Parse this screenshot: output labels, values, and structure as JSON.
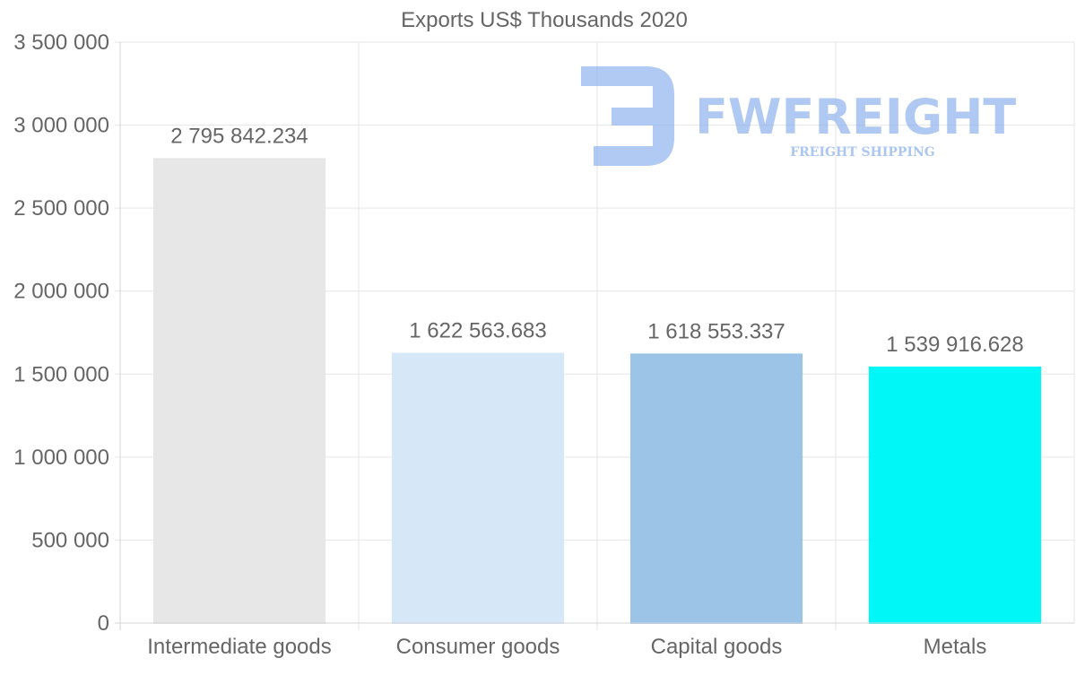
{
  "chart_data": {
    "type": "bar",
    "title": "Exports US$ Thousands 2020",
    "categories": [
      "Intermediate goods",
      "Consumer goods",
      "Capital goods",
      "Metals"
    ],
    "values": [
      2795842.234,
      1622563.683,
      1618553.337,
      1539916.628
    ],
    "value_labels": [
      "2 795 842.234",
      "1 622 563.683",
      "1 618 553.337",
      "1 539 916.628"
    ],
    "colors": [
      "#e7e7e7",
      "#d6e7f8",
      "#9bc4e6",
      "#00f7f7"
    ],
    "ylim": [
      0,
      3500000
    ],
    "yticks": [
      0,
      500000,
      1000000,
      1500000,
      2000000,
      2500000,
      3000000,
      3500000
    ],
    "ytick_labels": [
      "0",
      "500 000",
      "1 000 000",
      "1 500 000",
      "2 000 000",
      "2 500 000",
      "3 000 000",
      "3 500 000"
    ],
    "xlabel": "",
    "ylabel": "",
    "grid": true,
    "legend": "none"
  },
  "watermark": {
    "brand": "FWFREIGHT",
    "tagline": "FREIGHT SHIPPING",
    "color": "#8fb3ee"
  }
}
